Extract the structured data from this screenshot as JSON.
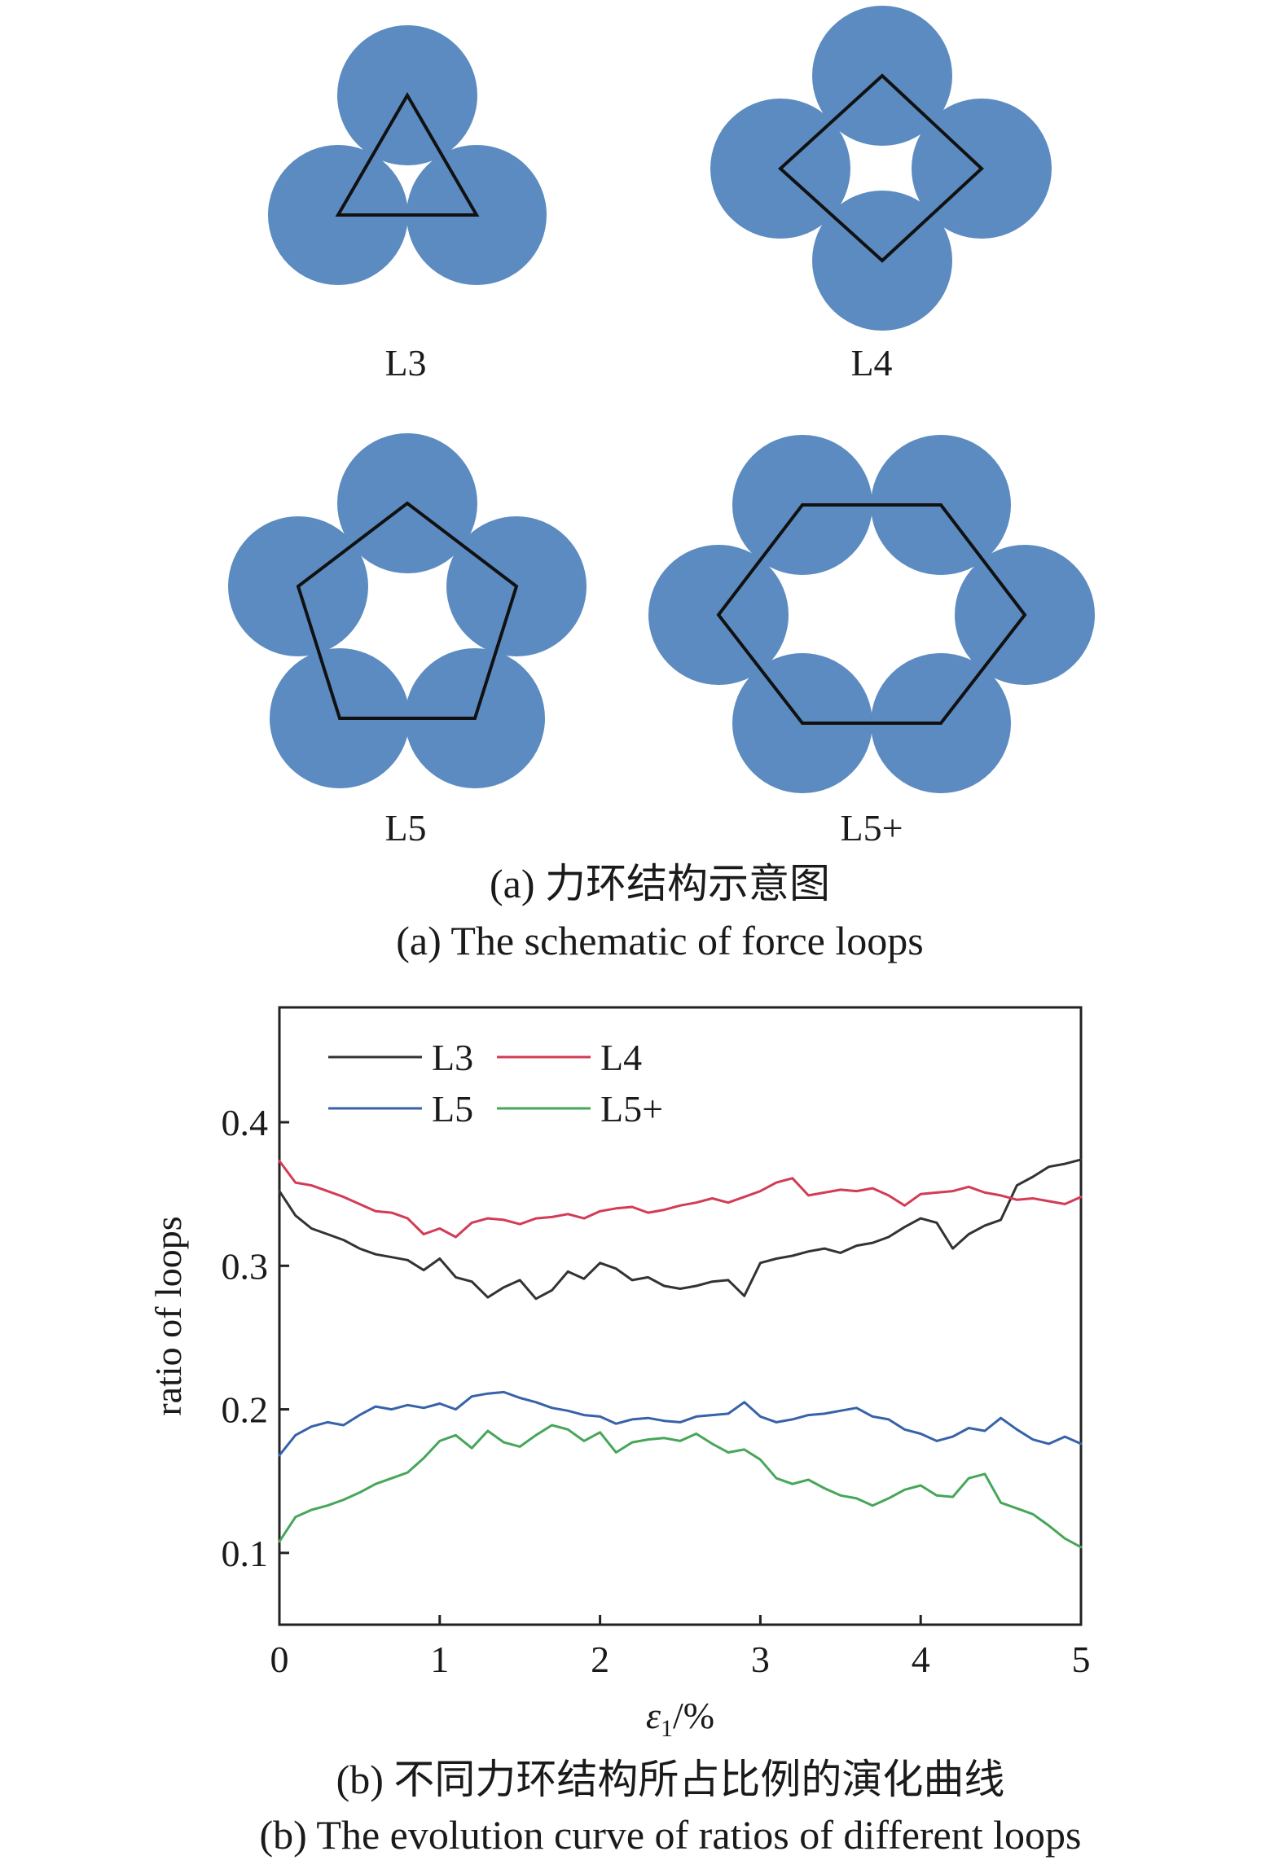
{
  "schematic": {
    "panels": [
      {
        "id": "l3",
        "label": "L3"
      },
      {
        "id": "l4",
        "label": "L4"
      },
      {
        "id": "l5",
        "label": "L5"
      },
      {
        "id": "l5p",
        "label": "L5+"
      }
    ],
    "caption_cn": "(a) 力环结构示意图",
    "caption_en": "(a) The schematic of force loops",
    "disk_color": "#5b8bc0"
  },
  "chart_caption_cn": "(b) 不同力环结构所占比例的演化曲线",
  "chart_caption_en": "(b) The evolution curve of ratios of different loops",
  "chart_data": {
    "type": "line",
    "xlabel_symbol": "ε",
    "xlabel_sub": "1",
    "xlabel_unit": "/%",
    "ylabel": "ratio of loops",
    "xlim": [
      0,
      5
    ],
    "ylim": [
      0.05,
      0.48
    ],
    "xticks": [
      0,
      1,
      2,
      3,
      4,
      5
    ],
    "yticks": [
      0.1,
      0.2,
      0.3,
      0.4
    ],
    "ytick_labels": [
      "0.1",
      "0.2",
      "0.3",
      "0.4"
    ],
    "grid": false,
    "legend_position": "top-left",
    "x": [
      0,
      0.1,
      0.2,
      0.3,
      0.4,
      0.5,
      0.6,
      0.7,
      0.8,
      0.9,
      1.0,
      1.1,
      1.2,
      1.3,
      1.4,
      1.5,
      1.6,
      1.7,
      1.8,
      1.9,
      2.0,
      2.1,
      2.2,
      2.3,
      2.4,
      2.5,
      2.6,
      2.7,
      2.8,
      2.9,
      3.0,
      3.1,
      3.2,
      3.3,
      3.4,
      3.5,
      3.6,
      3.7,
      3.8,
      3.9,
      4.0,
      4.1,
      4.2,
      4.3,
      4.4,
      4.5,
      4.6,
      4.7,
      4.8,
      4.9,
      5.0
    ],
    "series": [
      {
        "name": "L3",
        "color": "#333333",
        "values": [
          0.352,
          0.335,
          0.326,
          0.322,
          0.318,
          0.312,
          0.308,
          0.306,
          0.304,
          0.297,
          0.305,
          0.292,
          0.289,
          0.278,
          0.285,
          0.29,
          0.277,
          0.283,
          0.296,
          0.291,
          0.302,
          0.298,
          0.29,
          0.292,
          0.286,
          0.284,
          0.286,
          0.289,
          0.29,
          0.279,
          0.302,
          0.305,
          0.307,
          0.31,
          0.312,
          0.309,
          0.314,
          0.316,
          0.32,
          0.327,
          0.333,
          0.33,
          0.312,
          0.322,
          0.328,
          0.332,
          0.356,
          0.362,
          0.369,
          0.371,
          0.374
        ]
      },
      {
        "name": "L4",
        "color": "#d23c54",
        "values": [
          0.373,
          0.358,
          0.356,
          0.352,
          0.348,
          0.343,
          0.338,
          0.337,
          0.333,
          0.322,
          0.326,
          0.32,
          0.33,
          0.333,
          0.332,
          0.329,
          0.333,
          0.334,
          0.336,
          0.333,
          0.338,
          0.34,
          0.341,
          0.337,
          0.339,
          0.342,
          0.344,
          0.347,
          0.344,
          0.348,
          0.352,
          0.358,
          0.361,
          0.349,
          0.351,
          0.353,
          0.352,
          0.354,
          0.349,
          0.342,
          0.35,
          0.351,
          0.352,
          0.355,
          0.351,
          0.349,
          0.346,
          0.347,
          0.345,
          0.343,
          0.348
        ]
      },
      {
        "name": "L5",
        "color": "#3762a9",
        "values": [
          0.168,
          0.182,
          0.188,
          0.191,
          0.189,
          0.196,
          0.202,
          0.2,
          0.203,
          0.201,
          0.204,
          0.2,
          0.209,
          0.211,
          0.212,
          0.208,
          0.205,
          0.201,
          0.199,
          0.196,
          0.195,
          0.19,
          0.193,
          0.194,
          0.192,
          0.191,
          0.195,
          0.196,
          0.197,
          0.205,
          0.195,
          0.191,
          0.193,
          0.196,
          0.197,
          0.199,
          0.201,
          0.195,
          0.193,
          0.186,
          0.183,
          0.178,
          0.181,
          0.187,
          0.185,
          0.194,
          0.186,
          0.179,
          0.176,
          0.181,
          0.176
        ]
      },
      {
        "name": "L5+",
        "color": "#47a65a",
        "values": [
          0.108,
          0.125,
          0.13,
          0.133,
          0.137,
          0.142,
          0.148,
          0.152,
          0.156,
          0.166,
          0.178,
          0.182,
          0.173,
          0.185,
          0.177,
          0.174,
          0.182,
          0.189,
          0.186,
          0.178,
          0.184,
          0.17,
          0.177,
          0.179,
          0.18,
          0.178,
          0.183,
          0.176,
          0.17,
          0.172,
          0.165,
          0.152,
          0.148,
          0.151,
          0.145,
          0.14,
          0.138,
          0.133,
          0.138,
          0.144,
          0.147,
          0.14,
          0.139,
          0.152,
          0.155,
          0.135,
          0.131,
          0.127,
          0.119,
          0.11,
          0.104
        ]
      }
    ]
  }
}
